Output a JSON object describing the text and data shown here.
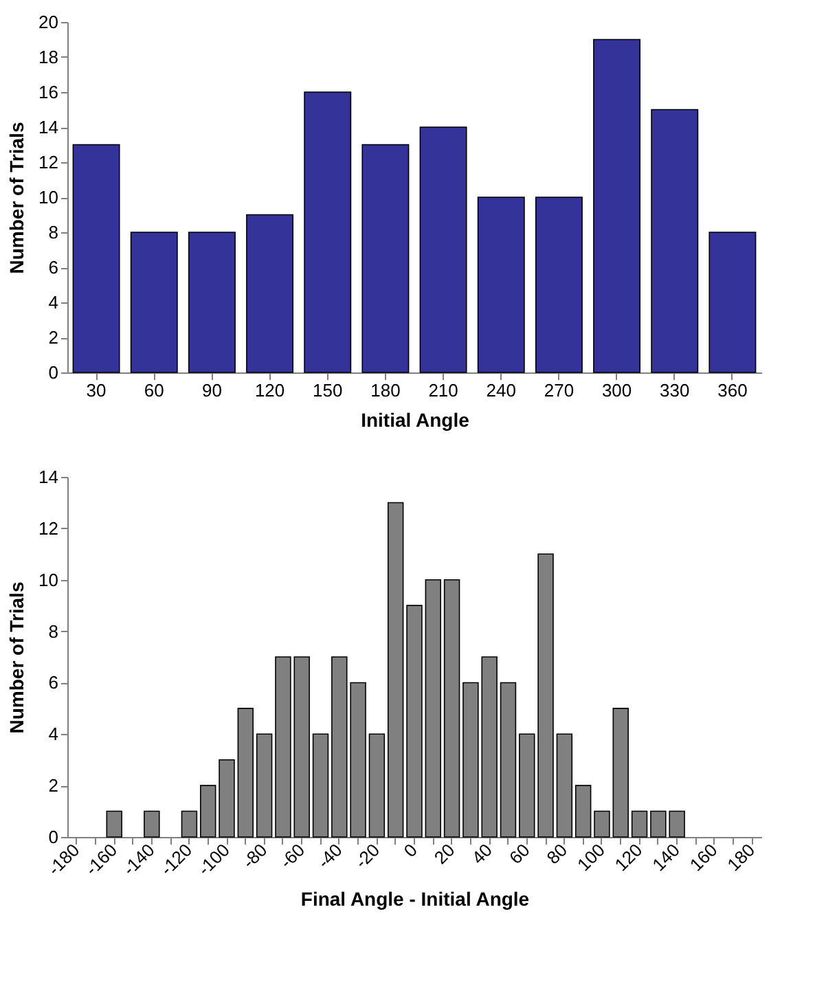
{
  "chart_data": [
    {
      "type": "bar",
      "xlabel": "Initial Angle",
      "ylabel": "Number of Trials",
      "categories": [
        "30",
        "60",
        "90",
        "120",
        "150",
        "180",
        "210",
        "240",
        "270",
        "300",
        "330",
        "360"
      ],
      "values": [
        13,
        8,
        8,
        9,
        16,
        13,
        14,
        10,
        10,
        19,
        15,
        8
      ],
      "color": "#333399",
      "ylim": [
        0,
        20
      ],
      "yticks": [
        0,
        2,
        4,
        6,
        8,
        10,
        12,
        14,
        16,
        18,
        20
      ],
      "grid": false
    },
    {
      "type": "bar",
      "xlabel": "Final Angle - Initial Angle",
      "ylabel": "Number of Trials",
      "categories": [
        "-180",
        null,
        "-160",
        null,
        "-140",
        null,
        "-120",
        null,
        "-100",
        null,
        "-80",
        null,
        "-60",
        null,
        "-40",
        null,
        "-20",
        null,
        "0",
        null,
        "20",
        null,
        "40",
        null,
        "60",
        null,
        "80",
        null,
        "100",
        null,
        "120",
        null,
        "140",
        null,
        "160",
        null,
        "180"
      ],
      "values": [
        0,
        0,
        1,
        0,
        1,
        0,
        1,
        2,
        3,
        5,
        4,
        7,
        7,
        4,
        7,
        6,
        4,
        13,
        9,
        10,
        10,
        6,
        7,
        6,
        4,
        11,
        4,
        2,
        1,
        5,
        1,
        1,
        1,
        0,
        0,
        0,
        0
      ],
      "color": "#808080",
      "ylim": [
        0,
        14
      ],
      "yticks": [
        0,
        2,
        4,
        6,
        8,
        10,
        12,
        14
      ],
      "grid": false
    }
  ]
}
